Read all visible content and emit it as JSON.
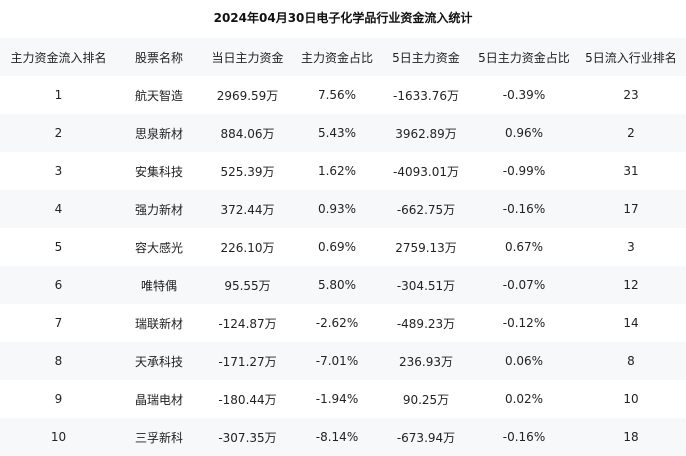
{
  "title": "2024年04月30日电子化学品行业资金流入统计",
  "columns": [
    "主力资金流入排名",
    "股票名称",
    "当日主力资金",
    "主力资金占比",
    "5日主力资金",
    "5日主力资金占比",
    "5日流入行业排名"
  ],
  "rows": [
    [
      "1",
      "航天智造",
      "2969.59万",
      "7.56%",
      "-1633.76万",
      "-0.39%",
      "23"
    ],
    [
      "2",
      "思泉新材",
      "884.06万",
      "5.43%",
      "3962.89万",
      "0.96%",
      "2"
    ],
    [
      "3",
      "安集科技",
      "525.39万",
      "1.62%",
      "-4093.01万",
      "-0.99%",
      "31"
    ],
    [
      "4",
      "强力新材",
      "372.44万",
      "0.93%",
      "-662.75万",
      "-0.16%",
      "17"
    ],
    [
      "5",
      "容大感光",
      "226.10万",
      "0.69%",
      "2759.13万",
      "0.67%",
      "3"
    ],
    [
      "6",
      "唯特偶",
      "95.55万",
      "5.80%",
      "-304.51万",
      "-0.07%",
      "12"
    ],
    [
      "7",
      "瑞联新材",
      "-124.87万",
      "-2.62%",
      "-489.23万",
      "-0.12%",
      "14"
    ],
    [
      "8",
      "天承科技",
      "-171.27万",
      "-7.01%",
      "236.93万",
      "0.06%",
      "8"
    ],
    [
      "9",
      "晶瑞电材",
      "-180.44万",
      "-1.94%",
      "90.25万",
      "0.02%",
      "10"
    ],
    [
      "10",
      "三孚新科",
      "-307.35万",
      "-8.14%",
      "-673.94万",
      "-0.16%",
      "18"
    ]
  ]
}
